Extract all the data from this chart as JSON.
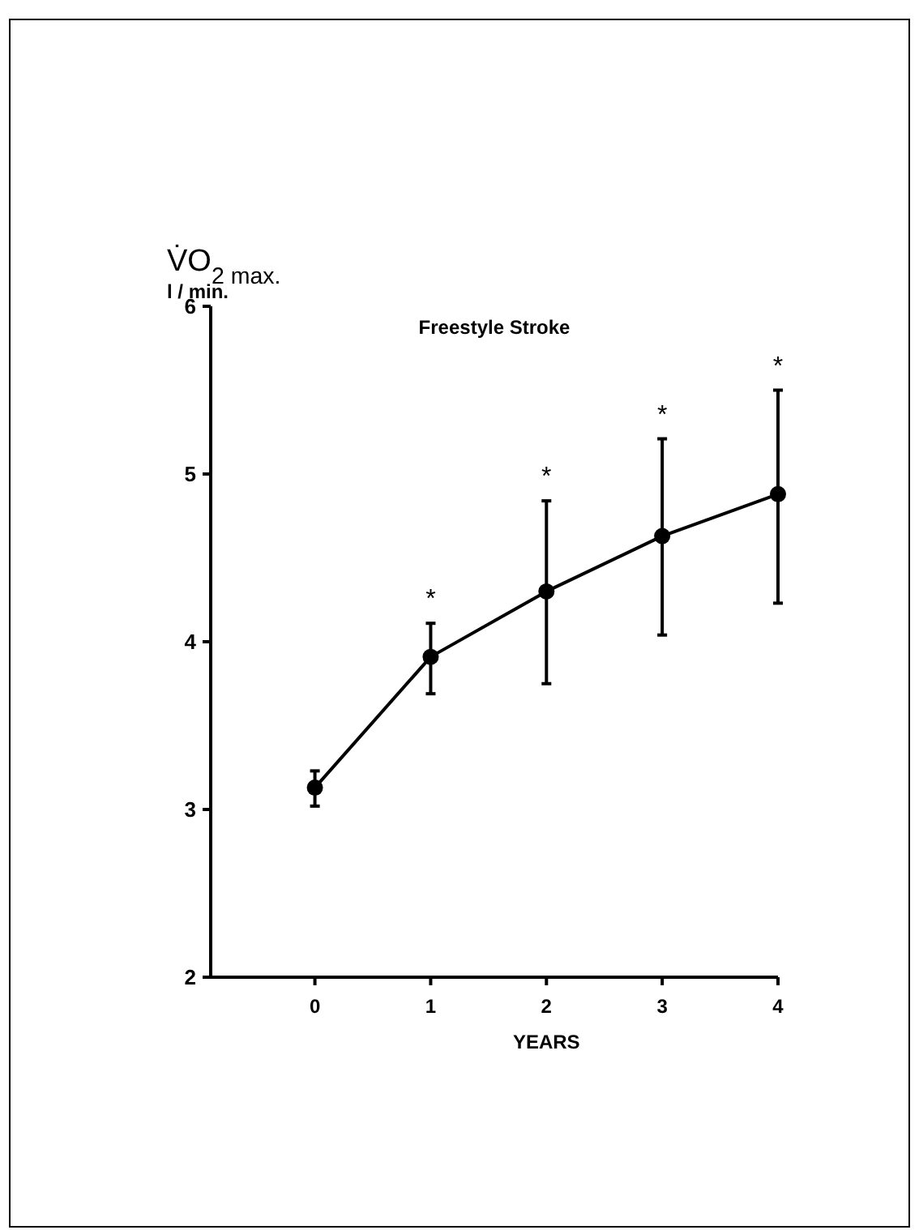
{
  "chart_data": {
    "type": "line",
    "title": "Freestyle Stroke",
    "xlabel": "YEARS",
    "ylabel": "V̇O$_{2 max.}$\nl / min.",
    "x": [
      0,
      1,
      2,
      3,
      4
    ],
    "series": [
      {
        "color": "#000000",
        "values": [
          3.13,
          3.91,
          4.3,
          4.63,
          4.88
        ],
        "errors": [
          [
            3.02,
            3.23
          ],
          [
            3.69,
            4.11
          ],
          [
            3.75,
            4.84
          ],
          [
            4.04,
            5.21
          ],
          [
            4.23,
            5.5
          ]
        ]
      }
    ],
    "xlim": [
      -0.9,
      4
    ],
    "xticks": [
      0,
      1,
      2,
      3,
      4
    ],
    "ylim": [
      2,
      6
    ],
    "yticks": [
      2,
      3,
      4,
      5,
      6
    ],
    "marker": "circle",
    "line_style": "solid",
    "grid": false,
    "annotations": [
      {
        "text": "*",
        "x": 1,
        "y": 4.11
      },
      {
        "text": "*",
        "x": 2,
        "y": 4.84
      },
      {
        "text": "*",
        "x": 3,
        "y": 5.21
      },
      {
        "text": "*",
        "x": 4,
        "y": 5.5
      }
    ]
  }
}
